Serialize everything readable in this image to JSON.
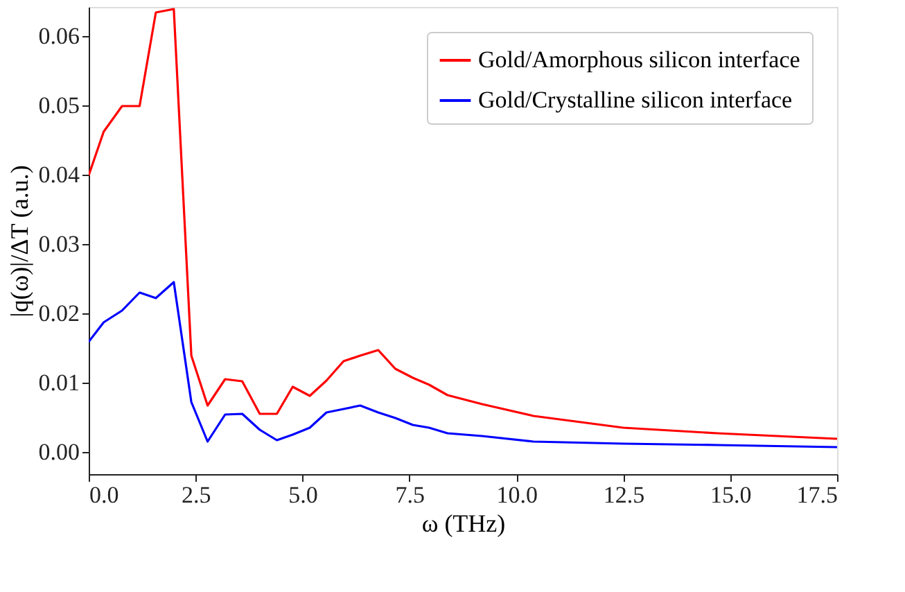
{
  "chart_data": {
    "type": "line",
    "xlabel": "ω (THz)",
    "ylabel": "|q(ω)|/ΔT (a.u.)",
    "xlim": [
      0,
      17.5
    ],
    "ylim": [
      -0.0032,
      0.0642
    ],
    "xticks": [
      {
        "value": 0,
        "label": "0.0"
      },
      {
        "value": 2.5,
        "label": "2.5"
      },
      {
        "value": 5,
        "label": "5.0"
      },
      {
        "value": 7.5,
        "label": "7.5"
      },
      {
        "value": 10,
        "label": "10.0"
      },
      {
        "value": 12.5,
        "label": "12.5"
      },
      {
        "value": 15,
        "label": "15.0"
      },
      {
        "value": 17.5,
        "label": "17.5"
      }
    ],
    "yticks": [
      {
        "value": 0,
        "label": "0.00"
      },
      {
        "value": 0.01,
        "label": "0.01"
      },
      {
        "value": 0.02,
        "label": "0.02"
      },
      {
        "value": 0.03,
        "label": "0.03"
      },
      {
        "value": 0.04,
        "label": "0.04"
      },
      {
        "value": 0.05,
        "label": "0.05"
      },
      {
        "value": 0.06,
        "label": "0.06"
      }
    ],
    "grid": false,
    "legend": "top right",
    "marker": "none",
    "line_style": "solid",
    "series": [
      {
        "name": "Gold/Amorphous silicon interface",
        "color": "#ff0000",
        "x": [
          0,
          0.35,
          0.78,
          1.19,
          1.57,
          1.99,
          2.4,
          2.78,
          3.19,
          3.59,
          4.0,
          4.4,
          4.77,
          5.17,
          5.56,
          5.96,
          6.35,
          6.77,
          7.17,
          7.58,
          7.96,
          8.39,
          9.2,
          10.4,
          12.5,
          14.7,
          17.5
        ],
        "values": [
          0.0399,
          0.0462,
          0.0499,
          0.0499,
          0.0634,
          0.0639,
          0.0139,
          0.0067,
          0.0105,
          0.0102,
          0.0055,
          0.0055,
          0.0094,
          0.0081,
          0.0103,
          0.0131,
          0.0139,
          0.0147,
          0.012,
          0.0107,
          0.0097,
          0.0082,
          0.0069,
          0.0052,
          0.0035,
          0.0027,
          0.0019
        ]
      },
      {
        "name": "Gold/Crystalline silicon interface",
        "color": "#0000ff",
        "x": [
          0,
          0.35,
          0.78,
          1.19,
          1.57,
          1.99,
          2.4,
          2.78,
          3.19,
          3.59,
          4.0,
          4.4,
          4.77,
          5.17,
          5.56,
          5.96,
          6.35,
          6.77,
          7.17,
          7.58,
          7.96,
          8.39,
          9.2,
          10.4,
          12.5,
          14.7,
          17.5
        ],
        "values": [
          0.0159,
          0.0187,
          0.0204,
          0.023,
          0.0222,
          0.0245,
          0.0072,
          0.0015,
          0.0054,
          0.0055,
          0.0032,
          0.0017,
          0.0025,
          0.0035,
          0.0057,
          0.0062,
          0.0067,
          0.0057,
          0.0049,
          0.0039,
          0.0035,
          0.0027,
          0.0023,
          0.0015,
          0.0012,
          0.001,
          0.0007
        ]
      }
    ]
  }
}
